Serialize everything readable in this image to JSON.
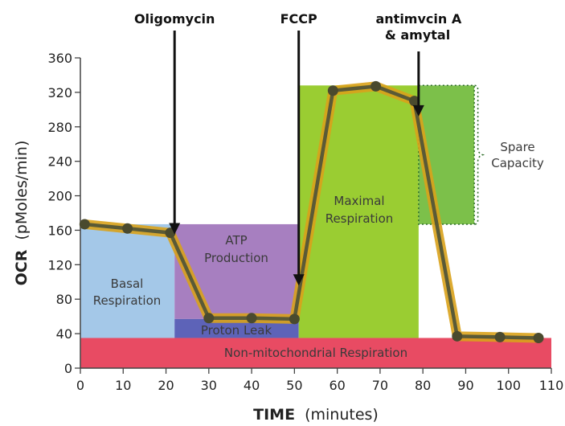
{
  "chart_data": {
    "type": "line",
    "xlabel": "TIME",
    "xlabel_unit": "(minutes)",
    "ylabel": "OCR",
    "ylabel_unit": "(pMoles/min)",
    "xlim": [
      0,
      110
    ],
    "ylim": [
      0,
      360
    ],
    "xticks": [
      "0",
      "10",
      "20",
      "30",
      "40",
      "50",
      "60",
      "70",
      "80",
      "90",
      "100",
      "110"
    ],
    "yticks": [
      "0",
      "40",
      "80",
      "120",
      "160",
      "200",
      "240",
      "280",
      "320",
      "360"
    ],
    "grid": false,
    "series": [
      {
        "x": [
          1,
          11,
          21,
          30,
          40,
          50,
          59,
          69,
          78,
          88,
          98,
          107
        ],
        "y": [
          167,
          162,
          157,
          58,
          58,
          57,
          322,
          327,
          310,
          37,
          36,
          35
        ]
      }
    ],
    "injections": [
      {
        "label": "Oligomycin",
        "x": 22
      },
      {
        "label": "FCCP",
        "x": 51
      },
      {
        "label": "antimvcin A",
        "label2": "& amytal",
        "x": 79
      }
    ],
    "regions": [
      {
        "key": "basal",
        "lines": [
          "Basal",
          "Respiration"
        ],
        "x": [
          0,
          22
        ],
        "y": [
          35,
          167
        ],
        "color": "#a4c8e8"
      },
      {
        "key": "atp",
        "lines": [
          "ATP",
          "Production"
        ],
        "x": [
          22,
          51
        ],
        "y": [
          57,
          167
        ],
        "color": "#a77fc0"
      },
      {
        "key": "leak",
        "lines": [
          "Proton Leak"
        ],
        "x": [
          22,
          51
        ],
        "y": [
          35,
          57
        ],
        "color": "#5d63b8"
      },
      {
        "key": "maximal",
        "lines": [
          "Maximal",
          "Respiration"
        ],
        "x": [
          51,
          79
        ],
        "y": [
          35,
          328
        ],
        "color": "#9acd32"
      },
      {
        "key": "spare",
        "lines": [
          "Spare",
          "Capacity"
        ],
        "x": [
          79,
          92
        ],
        "y": [
          167,
          328
        ],
        "color": "#7cc04a"
      },
      {
        "key": "nonmito",
        "lines": [
          "Non-mitochondrial Respiration"
        ],
        "x": [
          0,
          110
        ],
        "y": [
          0,
          35
        ],
        "color": "#e84b63"
      }
    ],
    "colors": {
      "line": "#5a5a36",
      "line_halo": "#d9a21b",
      "marker": "#4a4a2e"
    }
  }
}
